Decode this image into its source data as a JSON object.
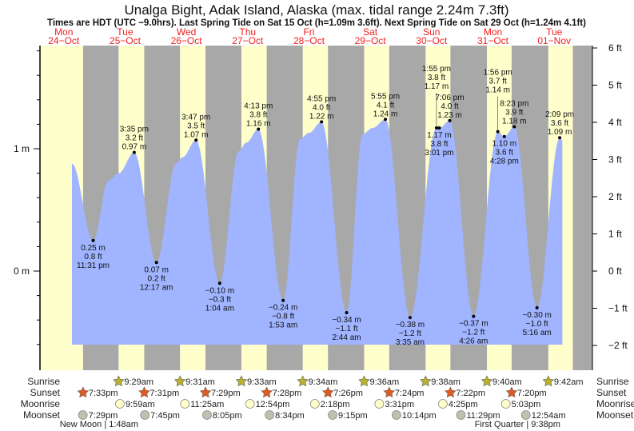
{
  "chart_data": {
    "type": "area",
    "title": "Unalga Bight, Adak Island, Alaska (max. tidal range 2.24m 7.3ft)",
    "subtitle": "Times are HDT (UTC −9.0hrs). Last Spring Tide on Sat 15 Oct (h=1.09m 3.6ft). Next Spring Tide on Sat 29 Oct (h=1.24m 4.1ft)",
    "days": [
      {
        "name": "Mon",
        "date": "24−Oct"
      },
      {
        "name": "Tue",
        "date": "25−Oct"
      },
      {
        "name": "Wed",
        "date": "26−Oct"
      },
      {
        "name": "Thu",
        "date": "27−Oct"
      },
      {
        "name": "Fri",
        "date": "28−Oct"
      },
      {
        "name": "Sat",
        "date": "29−Oct"
      },
      {
        "name": "Sun",
        "date": "30−Oct"
      },
      {
        "name": "Mon",
        "date": "31−Oct"
      },
      {
        "name": "Tue",
        "date": "01−Nov"
      }
    ],
    "y_left": {
      "unit": "m",
      "ticks": [
        {
          "v": 1,
          "label": "1 m"
        },
        {
          "v": 0,
          "label": "0 m"
        }
      ]
    },
    "y_right": {
      "unit": "ft",
      "ticks": [
        {
          "v": 6,
          "label": "6 ft"
        },
        {
          "v": 5,
          "label": "5 ft"
        },
        {
          "v": 4,
          "label": "4 ft"
        },
        {
          "v": 3,
          "label": "3 ft"
        },
        {
          "v": 2,
          "label": "2 ft"
        },
        {
          "v": 1,
          "label": "1 ft"
        },
        {
          "v": 0,
          "label": "0 ft"
        },
        {
          "v": -1,
          "label": "−1 ft"
        },
        {
          "v": -2,
          "label": "−2 ft"
        }
      ]
    },
    "extremes": [
      {
        "type": "low",
        "day": 0,
        "time": "11:31 pm",
        "m": 0.25,
        "m_label": "0.25 m",
        "ft_label": "0.8 ft"
      },
      {
        "type": "high",
        "day": 1,
        "time": "3:35 pm",
        "m": 0.97,
        "m_label": "0.97 m",
        "ft_label": "3.2 ft"
      },
      {
        "type": "low",
        "day": 2,
        "time": "12:17 am",
        "m": 0.07,
        "m_label": "0.07 m",
        "ft_label": "0.2 ft"
      },
      {
        "type": "high",
        "day": 2,
        "time": "3:47 pm",
        "m": 1.07,
        "m_label": "1.07 m",
        "ft_label": "3.5 ft"
      },
      {
        "type": "low",
        "day": 3,
        "time": "1:04 am",
        "m": -0.1,
        "m_label": "−0.10 m",
        "ft_label": "−0.3 ft"
      },
      {
        "type": "high",
        "day": 3,
        "time": "4:13 pm",
        "m": 1.16,
        "m_label": "1.16 m",
        "ft_label": "3.8 ft"
      },
      {
        "type": "low",
        "day": 4,
        "time": "1:53 am",
        "m": -0.24,
        "m_label": "−0.24 m",
        "ft_label": "−0.8 ft"
      },
      {
        "type": "high",
        "day": 4,
        "time": "4:55 pm",
        "m": 1.22,
        "m_label": "1.22 m",
        "ft_label": "4.0 ft"
      },
      {
        "type": "low",
        "day": 5,
        "time": "2:44 am",
        "m": -0.34,
        "m_label": "−0.34 m",
        "ft_label": "−1.1 ft"
      },
      {
        "type": "high",
        "day": 5,
        "time": "5:55 pm",
        "m": 1.24,
        "m_label": "1.24 m",
        "ft_label": "4.1 ft"
      },
      {
        "type": "low",
        "day": 6,
        "time": "3:35 am",
        "m": -0.38,
        "m_label": "−0.38 m",
        "ft_label": "−1.2 ft"
      },
      {
        "type": "high",
        "day": 6,
        "time": "1:55 pm",
        "m": 1.17,
        "m_label": "1.17 m",
        "ft_label": "3.8 ft"
      },
      {
        "type": "low",
        "day": 6,
        "time": "3:01 pm",
        "m": 1.17,
        "m_label": "1.17 m",
        "ft_label": "3.8 ft"
      },
      {
        "type": "high",
        "day": 6,
        "time": "7:06 pm",
        "m": 1.23,
        "m_label": "1.23 m",
        "ft_label": "4.0 ft"
      },
      {
        "type": "low",
        "day": 7,
        "time": "4:26 am",
        "m": -0.37,
        "m_label": "−0.37 m",
        "ft_label": "−1.2 ft"
      },
      {
        "type": "high",
        "day": 7,
        "time": "1:56 pm",
        "m": 1.14,
        "m_label": "1.14 m",
        "ft_label": "3.7 ft"
      },
      {
        "type": "low",
        "day": 7,
        "time": "4:28 pm",
        "m": 1.1,
        "m_label": "1.10 m",
        "ft_label": "3.6 ft"
      },
      {
        "type": "high",
        "day": 7,
        "time": "8:23 pm",
        "m": 1.18,
        "m_label": "1.18 m",
        "ft_label": "3.9 ft"
      },
      {
        "type": "low",
        "day": 8,
        "time": "5:16 am",
        "m": -0.3,
        "m_label": "−0.30 m",
        "ft_label": "−1.0 ft"
      },
      {
        "type": "high",
        "day": 8,
        "time": "2:09 pm",
        "m": 1.09,
        "m_label": "1.09 m",
        "ft_label": "3.6 ft"
      }
    ],
    "shape_points_hours_m": [
      [
        15.2,
        0.88
      ],
      [
        29.5,
        0.74
      ],
      [
        33.5,
        0.8
      ],
      [
        56,
        0.88
      ],
      [
        58.5,
        0.93
      ],
      [
        80.5,
        0.98
      ],
      [
        83.5,
        1.05
      ],
      [
        104.5,
        1.08
      ],
      [
        108,
        1.13
      ],
      [
        129,
        1.12
      ],
      [
        133,
        1.17
      ],
      [
        207.2,
        1.07
      ]
    ],
    "rows": {
      "sunrise": {
        "label": "Sunrise",
        "events": [
          {
            "day": 1,
            "time": "9:29am"
          },
          {
            "day": 2,
            "time": "9:31am"
          },
          {
            "day": 3,
            "time": "9:33am"
          },
          {
            "day": 4,
            "time": "9:34am"
          },
          {
            "day": 5,
            "time": "9:36am"
          },
          {
            "day": 6,
            "time": "9:38am"
          },
          {
            "day": 7,
            "time": "9:40am"
          },
          {
            "day": 8,
            "time": "9:42am"
          }
        ]
      },
      "sunset": {
        "label": "Sunset",
        "events": [
          {
            "day": 0,
            "time": "7:33pm"
          },
          {
            "day": 1,
            "time": "7:31pm"
          },
          {
            "day": 2,
            "time": "7:29pm"
          },
          {
            "day": 3,
            "time": "7:28pm"
          },
          {
            "day": 4,
            "time": "7:26pm"
          },
          {
            "day": 5,
            "time": "7:24pm"
          },
          {
            "day": 6,
            "time": "7:22pm"
          },
          {
            "day": 7,
            "time": "7:20pm"
          }
        ]
      },
      "moonrise": {
        "label": "Moonrise",
        "events": [
          {
            "day": 1,
            "time": "9:59am"
          },
          {
            "day": 2,
            "time": "11:25am"
          },
          {
            "day": 3,
            "time": "12:54pm"
          },
          {
            "day": 4,
            "time": "2:18pm"
          },
          {
            "day": 5,
            "time": "3:31pm"
          },
          {
            "day": 6,
            "time": "4:25pm"
          },
          {
            "day": 7,
            "time": "5:03pm"
          }
        ]
      },
      "moonset": {
        "label": "Moonset",
        "events": [
          {
            "day": 0,
            "time": "7:29pm"
          },
          {
            "day": 1,
            "time": "7:45pm"
          },
          {
            "day": 2,
            "time": "8:05pm"
          },
          {
            "day": 3,
            "time": "8:34pm"
          },
          {
            "day": 4,
            "time": "9:15pm"
          },
          {
            "day": 5,
            "time": "10:14pm"
          },
          {
            "day": 6,
            "time": "11:29pm"
          },
          {
            "day": 8,
            "time": "12:54am"
          }
        ]
      }
    },
    "moon_phases": [
      {
        "text": "New Moon | 1:48am",
        "day": 1,
        "time": "1:48am"
      },
      {
        "text": "First Quarter | 9:38pm",
        "day": 7,
        "time": "9:38pm"
      }
    ],
    "colors": {
      "day": "#ffffcc",
      "night": "#a8a8a8",
      "water": "#a0b4ff",
      "sunrise": "#b8b030",
      "sunset": "#e05a20",
      "moonrise": "#ffffc8",
      "moonset": "#c0c0b0",
      "day_label": "#f02020"
    }
  }
}
